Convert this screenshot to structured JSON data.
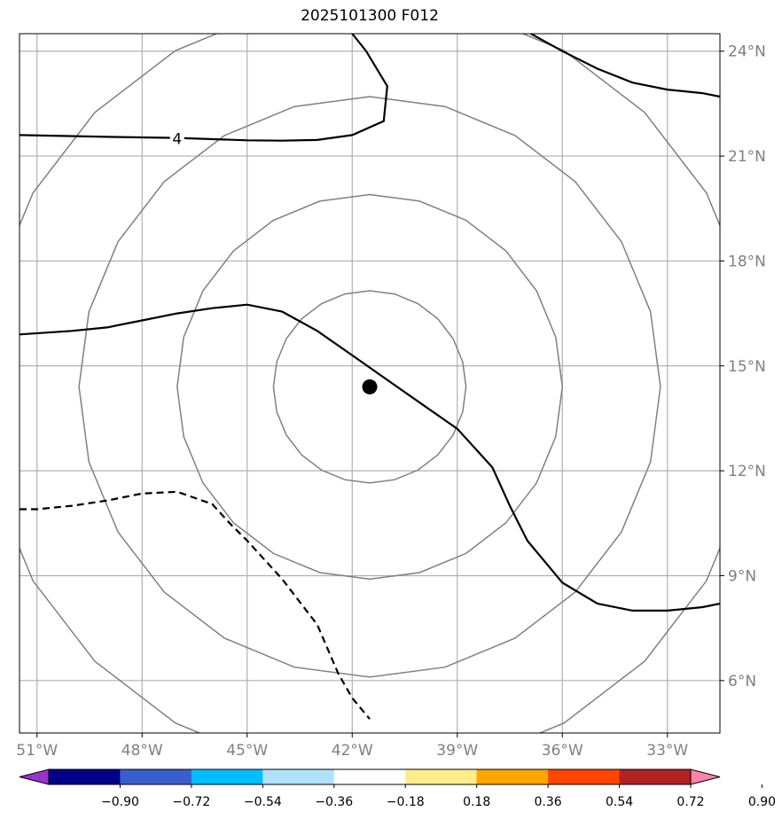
{
  "title": "2025101300 F012",
  "map": {
    "lon_range": [
      -51.5,
      -31.5
    ],
    "lat_range": [
      4.5,
      24.5
    ],
    "lon_ticks": [
      {
        "value": -51,
        "label": "51°W"
      },
      {
        "value": -48,
        "label": "48°W"
      },
      {
        "value": -45,
        "label": "45°W"
      },
      {
        "value": -42,
        "label": "42°W"
      },
      {
        "value": -39,
        "label": "39°W"
      },
      {
        "value": -36,
        "label": "36°W"
      },
      {
        "value": -33,
        "label": "33°W"
      }
    ],
    "lat_ticks": [
      {
        "value": 6,
        "label": "6°N"
      },
      {
        "value": 9,
        "label": "9°N"
      },
      {
        "value": 12,
        "label": "12°N"
      },
      {
        "value": 15,
        "label": "15°N"
      },
      {
        "value": 18,
        "label": "18°N"
      },
      {
        "value": 21,
        "label": "21°N"
      },
      {
        "value": 24,
        "label": "24°N"
      }
    ],
    "grid": true,
    "center": {
      "lon": -41.5,
      "lat": 14.4
    },
    "range_rings_deg": [
      2.75,
      5.5,
      8.3,
      11.1
    ],
    "contour_label": "4",
    "contour_label_pos": {
      "lon": -47.0,
      "lat": 21.5
    },
    "contours": [
      {
        "style": "solid",
        "points": [
          [
            -51.5,
            21.6
          ],
          [
            -49,
            21.55
          ],
          [
            -47,
            21.52
          ],
          [
            -45,
            21.45
          ],
          [
            -44,
            21.44
          ],
          [
            -43,
            21.46
          ],
          [
            -42,
            21.6
          ],
          [
            -41.1,
            22.0
          ],
          [
            -41.0,
            23.0
          ],
          [
            -41.6,
            24.0
          ],
          [
            -42.0,
            24.5
          ]
        ]
      },
      {
        "style": "solid",
        "points": [
          [
            -36.9,
            24.5
          ],
          [
            -36,
            24
          ],
          [
            -35,
            23.5
          ],
          [
            -34,
            23.1
          ],
          [
            -33,
            22.9
          ],
          [
            -32,
            22.8
          ],
          [
            -31.5,
            22.7
          ]
        ]
      },
      {
        "style": "solid",
        "points": [
          [
            -51.5,
            15.9
          ],
          [
            -50,
            16
          ],
          [
            -49,
            16.1
          ],
          [
            -48,
            16.3
          ],
          [
            -47,
            16.5
          ],
          [
            -46,
            16.65
          ],
          [
            -45,
            16.75
          ],
          [
            -44,
            16.55
          ],
          [
            -43,
            16.0
          ],
          [
            -42,
            15.3
          ],
          [
            -41,
            14.6
          ],
          [
            -40,
            13.9
          ],
          [
            -39,
            13.2
          ],
          [
            -38,
            12.1
          ],
          [
            -37.5,
            11.0
          ],
          [
            -37,
            10.0
          ],
          [
            -36,
            8.8
          ],
          [
            -35,
            8.2
          ],
          [
            -34,
            8.0
          ],
          [
            -33,
            8.0
          ],
          [
            -32,
            8.1
          ],
          [
            -31.5,
            8.2
          ]
        ]
      },
      {
        "style": "dashed",
        "points": [
          [
            -51.5,
            10.9
          ],
          [
            -51,
            10.9
          ],
          [
            -50,
            11.0
          ],
          [
            -49,
            11.15
          ],
          [
            -48,
            11.35
          ],
          [
            -47,
            11.4
          ],
          [
            -46,
            11.05
          ],
          [
            -45.5,
            10.5
          ],
          [
            -45,
            10.0
          ],
          [
            -44,
            8.9
          ],
          [
            -43,
            7.6
          ],
          [
            -42.4,
            6.2
          ],
          [
            -42,
            5.5
          ],
          [
            -41.5,
            4.9
          ]
        ]
      }
    ]
  },
  "colorbar": {
    "colors": [
      "#9932cc",
      "#00008b",
      "#3a5fcd",
      "#00bfff",
      "#b0e2ff",
      "#ffffff",
      "#ffec8b",
      "#ffa500",
      "#ff4500",
      "#b22222",
      "#ff82ab"
    ],
    "labels": [
      "−0.90",
      "−0.72",
      "−0.54",
      "−0.36",
      "−0.18",
      "0.18",
      "0.36",
      "0.54",
      "0.72",
      "0.90"
    ]
  }
}
